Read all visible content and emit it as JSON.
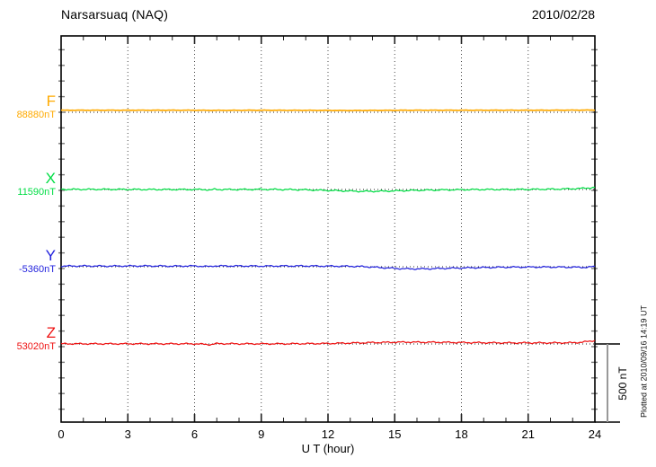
{
  "header": {
    "station_title": "Narsarsuaq (NAQ)",
    "date": "2010/02/28"
  },
  "xaxis": {
    "title": "U T (hour)",
    "ticks": [
      "0",
      "3",
      "6",
      "9",
      "12",
      "15",
      "18",
      "21",
      "24"
    ]
  },
  "scale_bar": {
    "label": "500 nT",
    "color": "#999999"
  },
  "plotted_note": "Plotted at 2010/09/16 14:19 UT",
  "channels": [
    {
      "name": "F",
      "baseline_label": "88880nT",
      "baseline_nT": 88880,
      "color": "#FFAA00"
    },
    {
      "name": "X",
      "baseline_label": "11590nT",
      "baseline_nT": 11590,
      "color": "#00DD44"
    },
    {
      "name": "Y",
      "baseline_label": "-5360nT",
      "baseline_nT": -5360,
      "color": "#2222DD"
    },
    {
      "name": "Z",
      "baseline_label": "53020nT",
      "baseline_nT": 53020,
      "color": "#EE1111"
    }
  ],
  "chart_data": {
    "type": "line",
    "title": "Narsarsuaq (NAQ) magnetogram 2010/02/28",
    "xlabel": "U T (hour)",
    "ylabel": "",
    "xlim": [
      0,
      24
    ],
    "x_major_tick_hours": 3,
    "x_minor_tick_hours": 1,
    "y_tick_step_nT": 100,
    "trace_separation_nT": 500,
    "grid": "dotted vertical every 3 h; dotted horizontal baseline per trace",
    "legend_position": "left margin (F, X, Y, Z with baseline values)",
    "note": "series values are [hour, offset in nT from baseline_nT]; traces are nearly quiet-day flat",
    "series": [
      {
        "name": "F",
        "baseline_nT": 88880,
        "color": "#FFAA00",
        "points": [
          [
            0,
            13
          ],
          [
            3,
            13
          ],
          [
            6,
            13
          ],
          [
            6.8,
            12
          ],
          [
            9,
            13
          ],
          [
            12,
            12
          ],
          [
            13,
            11
          ],
          [
            14,
            12
          ],
          [
            16,
            13
          ],
          [
            18,
            13
          ],
          [
            20,
            13
          ],
          [
            22,
            13
          ],
          [
            24,
            14
          ]
        ]
      },
      {
        "name": "X",
        "baseline_nT": 11590,
        "color": "#00DD44",
        "points": [
          [
            0,
            1
          ],
          [
            2,
            1
          ],
          [
            4,
            0
          ],
          [
            6,
            0
          ],
          [
            6.5,
            0
          ],
          [
            6.7,
            -5
          ],
          [
            6.9,
            2
          ],
          [
            7.1,
            0
          ],
          [
            8,
            0
          ],
          [
            9,
            1
          ],
          [
            10,
            0
          ],
          [
            11,
            -2
          ],
          [
            12,
            -6
          ],
          [
            13,
            -10
          ],
          [
            13.6,
            -12
          ],
          [
            14.3,
            -11
          ],
          [
            15,
            -9
          ],
          [
            16,
            -5
          ],
          [
            17,
            -3
          ],
          [
            18,
            -1
          ],
          [
            19,
            0
          ],
          [
            20,
            0
          ],
          [
            21,
            1
          ],
          [
            22,
            2
          ],
          [
            22.8,
            4
          ],
          [
            23.4,
            7
          ],
          [
            24,
            13
          ]
        ]
      },
      {
        "name": "Y",
        "baseline_nT": -5360,
        "color": "#2222DD",
        "points": [
          [
            0,
            4
          ],
          [
            1,
            5
          ],
          [
            2,
            4
          ],
          [
            3,
            5
          ],
          [
            4,
            5
          ],
          [
            5,
            4
          ],
          [
            6,
            5
          ],
          [
            6.7,
            1
          ],
          [
            6.9,
            6
          ],
          [
            7.1,
            5
          ],
          [
            8,
            5
          ],
          [
            9,
            4
          ],
          [
            10,
            5
          ],
          [
            11,
            5
          ],
          [
            12,
            4
          ],
          [
            13,
            3
          ],
          [
            13.6,
            1
          ],
          [
            14.2,
            -4
          ],
          [
            14.8,
            -9
          ],
          [
            15.4,
            -13
          ],
          [
            16,
            -14
          ],
          [
            16.6,
            -13
          ],
          [
            17.3,
            -10
          ],
          [
            18,
            -8
          ],
          [
            19,
            -5
          ],
          [
            20,
            -3
          ],
          [
            21,
            -2
          ],
          [
            22,
            -2
          ],
          [
            23,
            -3
          ],
          [
            23.6,
            -4
          ],
          [
            24,
            1
          ]
        ]
      },
      {
        "name": "Z",
        "baseline_nT": 53020,
        "color": "#EE1111",
        "points": [
          [
            0,
            1
          ],
          [
            2,
            1
          ],
          [
            4,
            1
          ],
          [
            6,
            1
          ],
          [
            6.7,
            -4
          ],
          [
            7,
            2
          ],
          [
            8,
            1
          ],
          [
            9,
            1
          ],
          [
            10,
            1
          ],
          [
            11,
            2
          ],
          [
            12,
            3
          ],
          [
            13,
            6
          ],
          [
            14,
            9
          ],
          [
            15,
            11
          ],
          [
            15.6,
            12
          ],
          [
            16.2,
            11
          ],
          [
            17,
            11
          ],
          [
            18,
            9
          ],
          [
            19,
            8
          ],
          [
            20,
            7
          ],
          [
            21,
            7
          ],
          [
            22,
            7
          ],
          [
            23,
            8
          ],
          [
            23.4,
            11
          ],
          [
            23.7,
            16
          ],
          [
            24,
            23
          ]
        ]
      }
    ]
  }
}
